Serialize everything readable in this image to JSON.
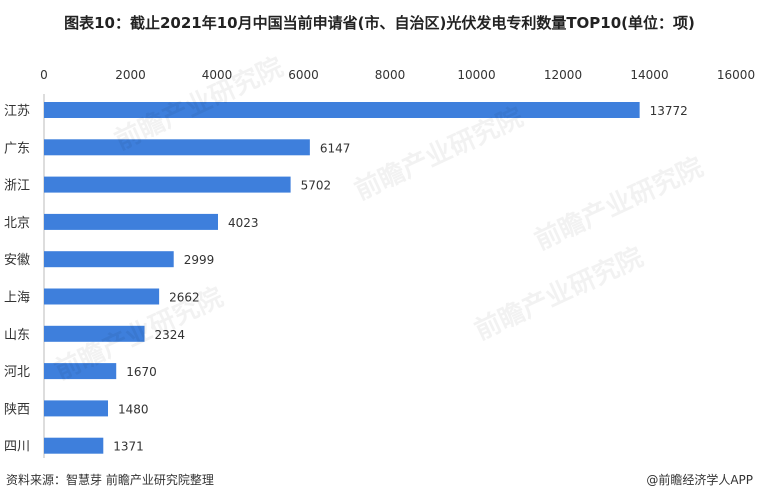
{
  "title": "图表10：截止2021年10月中国当前申请省(市、自治区)光伏发电专利数量TOP10(单位：项)",
  "footer": {
    "source": "资料来源：智慧芽 前瞻产业研究院整理",
    "brand": "@前瞻经济学人APP"
  },
  "watermark": "前瞻产业研究院",
  "chart_data": {
    "type": "bar",
    "orientation": "horizontal",
    "categories": [
      "江苏",
      "广东",
      "浙江",
      "北京",
      "安徽",
      "上海",
      "山东",
      "河北",
      "陕西",
      "四川"
    ],
    "values": [
      13772,
      6147,
      5702,
      4023,
      2999,
      2662,
      2324,
      1670,
      1480,
      1371
    ],
    "xlim": [
      0,
      16000
    ],
    "xticks": [
      0,
      2000,
      4000,
      6000,
      8000,
      10000,
      12000,
      14000,
      16000
    ],
    "xaxis_position": "top",
    "grid": false,
    "bar_color": "#3e7fdc"
  }
}
